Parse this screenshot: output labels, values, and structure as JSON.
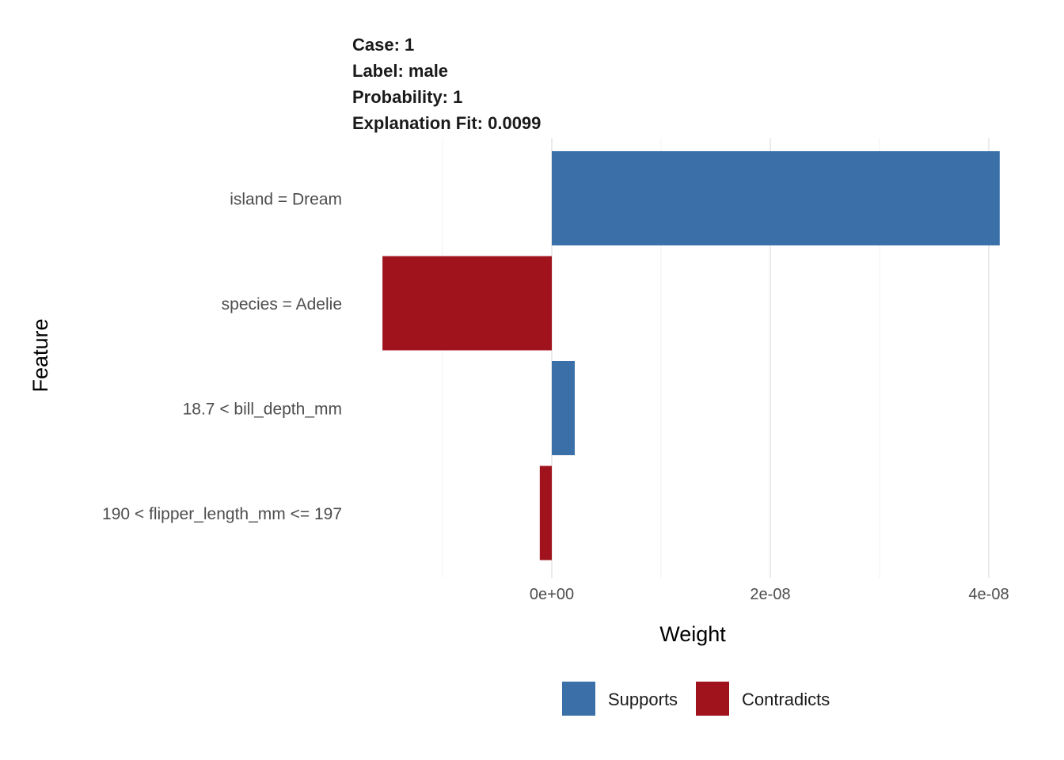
{
  "chart_data": {
    "type": "bar",
    "orientation": "horizontal",
    "title_lines": [
      "Case: 1",
      "Label: male",
      "Probability: 1",
      "Explanation Fit: 0.0099"
    ],
    "xlabel": "Weight",
    "ylabel": "Feature",
    "xlim": [
      -1.55e-08,
      4.1e-08
    ],
    "x_ticks": [
      0,
      2e-08,
      4e-08
    ],
    "x_tick_labels": [
      "0e+00",
      "2e-08",
      "4e-08"
    ],
    "grid": true,
    "legend_position": "bottom",
    "legend": [
      {
        "name": "Supports",
        "color": "#3A6FA8"
      },
      {
        "name": "Contradicts",
        "color": "#A0131D"
      }
    ],
    "categories": [
      "island = Dream",
      "species = Adelie",
      "18.7 < bill_depth_mm",
      "190 < flipper_length_mm <= 197"
    ],
    "values": [
      4.1e-08,
      -1.55e-08,
      2.1e-09,
      -1.1e-09
    ],
    "fill": [
      "Supports",
      "Contradicts",
      "Supports",
      "Contradicts"
    ]
  }
}
